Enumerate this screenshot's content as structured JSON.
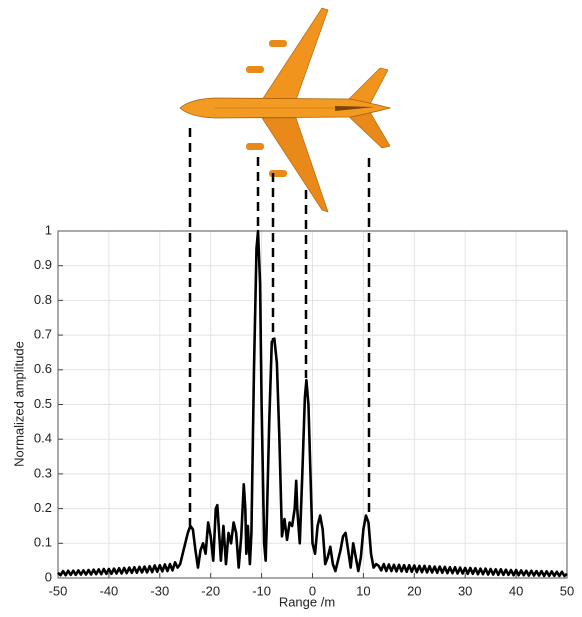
{
  "chart_data": {
    "type": "line",
    "xlabel": "Range /m",
    "ylabel": "Normalized amplitude",
    "xlim": [
      -50,
      50
    ],
    "ylim": [
      0,
      1
    ],
    "xticks": [
      -50,
      -40,
      -30,
      -20,
      -10,
      0,
      10,
      20,
      30,
      40,
      50
    ],
    "yticks": [
      0,
      0.1,
      0.2,
      0.3,
      0.4,
      0.5,
      0.6,
      0.7,
      0.8,
      0.9,
      1
    ],
    "grid": true,
    "color": "#000000",
    "x": [
      -50,
      -49.5,
      -49,
      -48.5,
      -48,
      -47.5,
      -47,
      -46.5,
      -46,
      -45.5,
      -45,
      -44.5,
      -44,
      -43.5,
      -43,
      -42.5,
      -42,
      -41.5,
      -41,
      -40.5,
      -40,
      -39.5,
      -39,
      -38.5,
      -38,
      -37.5,
      -37,
      -36.5,
      -36,
      -35.5,
      -35,
      -34.5,
      -34,
      -33.5,
      -33,
      -32.5,
      -32,
      -31.5,
      -31,
      -30.5,
      -30,
      -29.5,
      -29,
      -28.5,
      -28,
      -27.5,
      -27,
      -26.5,
      -26,
      -25.5,
      -25,
      -24.5,
      -24,
      -23.5,
      -23,
      -22.5,
      -22,
      -21.5,
      -21,
      -20.5,
      -20,
      -19.5,
      -19,
      -18.7,
      -18.3,
      -18,
      -17.5,
      -17,
      -16.5,
      -16,
      -15.5,
      -15,
      -14.5,
      -14,
      -13.5,
      -13.2,
      -13,
      -12.7,
      -12.3,
      -12,
      -11.5,
      -11,
      -10.7,
      -10.3,
      -10,
      -9.5,
      -9.2,
      -9,
      -8.5,
      -8,
      -7.5,
      -7,
      -6.5,
      -6,
      -5.5,
      -5,
      -4.5,
      -4,
      -3.5,
      -3.2,
      -3,
      -2.5,
      -2,
      -1.5,
      -1.2,
      -0.8,
      -0.3,
      0,
      0.5,
      1,
      1.5,
      2,
      2.5,
      3,
      3.5,
      4,
      4.5,
      5,
      5.5,
      6,
      6.5,
      7,
      7.5,
      8,
      8.5,
      9,
      9.5,
      10,
      10.5,
      11,
      11.5,
      12,
      12.5,
      13,
      13.5,
      14,
      14.5,
      15,
      15.5,
      16,
      16.5,
      17,
      17.5,
      18,
      18.5,
      19,
      19.5,
      20,
      20.5,
      21,
      21.5,
      22,
      22.5,
      23,
      23.5,
      24,
      24.5,
      25,
      25.5,
      26,
      26.5,
      27,
      27.5,
      28,
      28.5,
      29,
      29.5,
      30,
      30.5,
      31,
      31.5,
      32,
      32.5,
      33,
      33.5,
      34,
      34.5,
      35,
      35.5,
      36,
      36.5,
      37,
      37.5,
      38,
      38.5,
      39,
      39.5,
      40,
      40.5,
      41,
      41.5,
      42,
      42.5,
      43,
      43.5,
      44,
      44.5,
      45,
      45.5,
      46,
      46.5,
      47,
      47.5,
      48,
      48.5,
      49,
      49.5,
      50
    ],
    "values": [
      0.015,
      0.008,
      0.02,
      0.008,
      0.021,
      0.009,
      0.021,
      0.009,
      0.022,
      0.01,
      0.022,
      0.01,
      0.023,
      0.01,
      0.024,
      0.011,
      0.025,
      0.011,
      0.026,
      0.012,
      0.026,
      0.012,
      0.027,
      0.013,
      0.028,
      0.013,
      0.029,
      0.014,
      0.03,
      0.015,
      0.031,
      0.015,
      0.032,
      0.016,
      0.033,
      0.016,
      0.034,
      0.017,
      0.036,
      0.018,
      0.037,
      0.019,
      0.039,
      0.02,
      0.04,
      0.022,
      0.045,
      0.03,
      0.04,
      0.07,
      0.1,
      0.13,
      0.15,
      0.14,
      0.08,
      0.03,
      0.08,
      0.1,
      0.07,
      0.16,
      0.12,
      0.05,
      0.2,
      0.21,
      0.12,
      0.05,
      0.15,
      0.04,
      0.13,
      0.1,
      0.16,
      0.13,
      0.03,
      0.12,
      0.27,
      0.2,
      0.07,
      0.15,
      0.04,
      0.13,
      0.6,
      0.95,
      1,
      0.85,
      0.5,
      0.1,
      0.05,
      0.15,
      0.45,
      0.68,
      0.69,
      0.62,
      0.4,
      0.12,
      0.17,
      0.11,
      0.16,
      0.15,
      0.2,
      0.28,
      0.2,
      0.1,
      0.3,
      0.52,
      0.57,
      0.5,
      0.25,
      0.1,
      0.07,
      0.15,
      0.18,
      0.14,
      0.04,
      0.06,
      0.09,
      0.04,
      0.02,
      0.05,
      0.08,
      0.12,
      0.13,
      0.08,
      0.03,
      0.1,
      0.06,
      0.02,
      0.06,
      0.14,
      0.18,
      0.16,
      0.07,
      0.03,
      0.04,
      0.035,
      0.022,
      0.04,
      0.02,
      0.039,
      0.02,
      0.038,
      0.019,
      0.038,
      0.019,
      0.037,
      0.018,
      0.037,
      0.018,
      0.036,
      0.017,
      0.035,
      0.017,
      0.035,
      0.016,
      0.034,
      0.016,
      0.033,
      0.015,
      0.033,
      0.015,
      0.032,
      0.014,
      0.031,
      0.014,
      0.031,
      0.013,
      0.03,
      0.013,
      0.029,
      0.012,
      0.029,
      0.012,
      0.028,
      0.011,
      0.027,
      0.011,
      0.027,
      0.01,
      0.026,
      0.01,
      0.025,
      0.009,
      0.025,
      0.009,
      0.024,
      0.009,
      0.023,
      0.008,
      0.023,
      0.008,
      0.022,
      0.008,
      0.021,
      0.007,
      0.021,
      0.007,
      0.02,
      0.007,
      0.02,
      0.006,
      0.019,
      0.006,
      0.019,
      0.006,
      0.018,
      0.006,
      0.018,
      0.006,
      0.012
    ]
  }
}
